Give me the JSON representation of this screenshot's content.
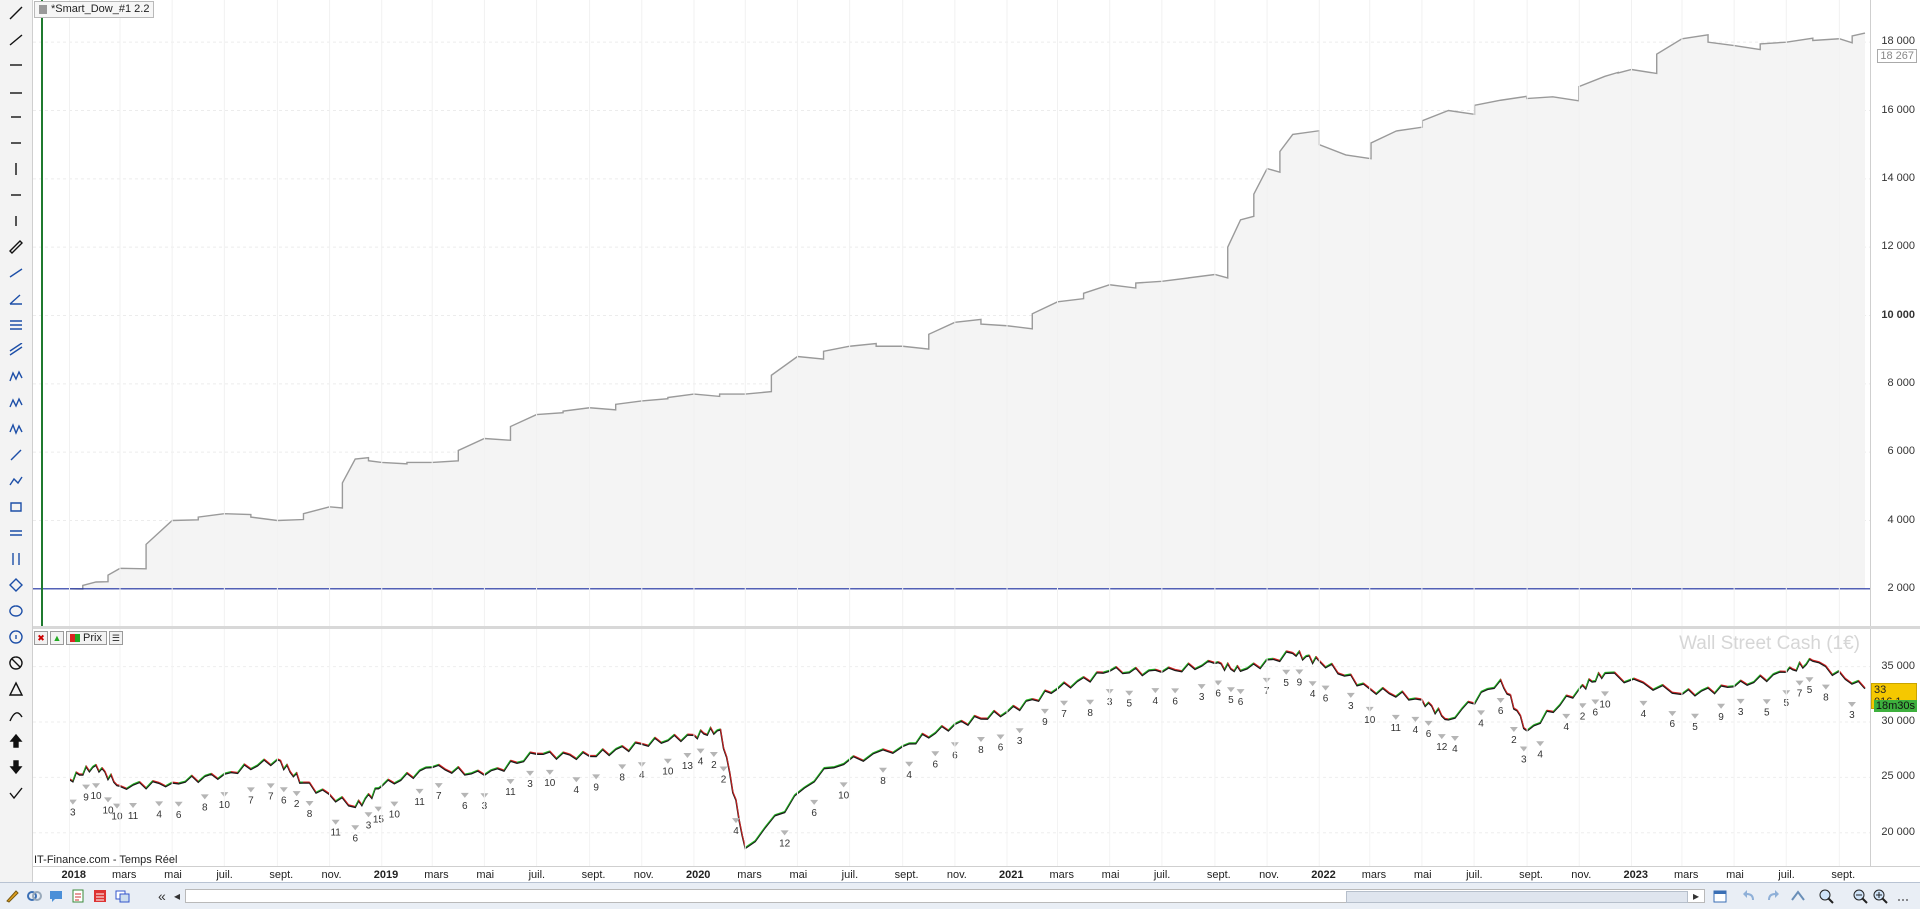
{
  "chart_title": "*Smart_Dow_#1 2.2",
  "equity_last_value": "18 267",
  "equity_axis_ticks": [
    "18 000",
    "16 000",
    "14 000",
    "12 000",
    "10 000",
    "8 000",
    "6 000",
    "4 000",
    "2 000"
  ],
  "price_tab_label": "Prix",
  "instrument_name": "Wall Street Cash (1€)",
  "price_axis_ticks": [
    "35 000",
    "30 000",
    "25 000",
    "20 000"
  ],
  "last_price": "33 016,1",
  "countdown": "18m30s",
  "data_source": "IT-Finance.com - Temps Réel",
  "time_axis": [
    {
      "label": "2018",
      "year": true
    },
    {
      "label": "mars"
    },
    {
      "label": "mai"
    },
    {
      "label": "juil."
    },
    {
      "label": "sept."
    },
    {
      "label": "nov."
    },
    {
      "label": "2019",
      "year": true
    },
    {
      "label": "mars"
    },
    {
      "label": "mai"
    },
    {
      "label": "juil."
    },
    {
      "label": "sept."
    },
    {
      "label": "nov."
    },
    {
      "label": "2020",
      "year": true
    },
    {
      "label": "mars"
    },
    {
      "label": "mai"
    },
    {
      "label": "juil."
    },
    {
      "label": "sept."
    },
    {
      "label": "nov."
    },
    {
      "label": "2021",
      "year": true
    },
    {
      "label": "mars"
    },
    {
      "label": "mai"
    },
    {
      "label": "juil."
    },
    {
      "label": "sept."
    },
    {
      "label": "nov."
    },
    {
      "label": "2022",
      "year": true
    },
    {
      "label": "mars"
    },
    {
      "label": "mai"
    },
    {
      "label": "juil."
    },
    {
      "label": "sept."
    },
    {
      "label": "nov."
    },
    {
      "label": "2023",
      "year": true
    },
    {
      "label": "mars"
    },
    {
      "label": "mai"
    },
    {
      "label": "juil."
    },
    {
      "label": "sept."
    }
  ],
  "trade_labels": [
    "3",
    "9",
    "10",
    "10",
    "10",
    "11",
    "4",
    "6",
    "8",
    "10",
    "7",
    "7",
    "6",
    "2",
    "8",
    "11",
    "6",
    "3",
    "15",
    "10",
    "11",
    "7",
    "6",
    "3",
    "11",
    "3",
    "10",
    "4",
    "9",
    "8",
    "4",
    "10",
    "13",
    "4",
    "2",
    "2",
    "4",
    "10",
    "12",
    "6",
    "10",
    "8",
    "4",
    "6",
    "6",
    "8",
    "6",
    "3",
    "9",
    "7",
    "8",
    "3",
    "5",
    "4",
    "6",
    "3",
    "6",
    "5",
    "6",
    "7",
    "5",
    "9",
    "4",
    "6",
    "3",
    "10",
    "11",
    "4",
    "6",
    "12",
    "4",
    "4",
    "6",
    "2",
    "3",
    "4",
    "4",
    "2",
    "6",
    "10",
    "4",
    "6",
    "5",
    "9",
    "3",
    "5",
    "5",
    "7",
    "5",
    "8",
    "3"
  ],
  "chart_data": [
    {
      "type": "line",
      "title": "*Smart_Dow_#1 2.2",
      "series": [
        {
          "name": "",
          "x": [
            "2018-01",
            "2018-02",
            "2018-03",
            "2018-05",
            "2018-07",
            "2018-09",
            "2018-11",
            "2018-12",
            "2019-01",
            "2019-03",
            "2019-05",
            "2019-07",
            "2019-09",
            "2019-11",
            "2020-01",
            "2020-03",
            "2020-05",
            "2020-07",
            "2020-09",
            "2020-11",
            "2021-01",
            "2021-03",
            "2021-05",
            "2021-07",
            "2021-09",
            "2021-10",
            "2021-11",
            "2021-12",
            "2022-02",
            "2022-04",
            "2022-06",
            "2022-08",
            "2022-10",
            "2022-12",
            "2023-01",
            "2023-03",
            "2023-05",
            "2023-07",
            "2023-09",
            "2023-10"
          ],
          "values": [
            2000,
            2200,
            2600,
            4000,
            4200,
            4000,
            4400,
            5800,
            5700,
            5700,
            6400,
            7100,
            7300,
            7500,
            7700,
            7700,
            8800,
            9100,
            9100,
            9800,
            9700,
            10400,
            10900,
            11000,
            11200,
            12800,
            14300,
            15300,
            14700,
            15400,
            16000,
            16300,
            16400,
            17000,
            17200,
            18100,
            17900,
            18000,
            18100,
            18267
          ]
        }
      ],
      "ylim": [
        1000,
        19000
      ],
      "reference_line": 2000,
      "grid": true
    },
    {
      "type": "line",
      "title": "Wall Street Cash (1€)",
      "series": [
        {
          "name": "Prix",
          "x": [
            "2018-01",
            "2018-02",
            "2018-03",
            "2018-05",
            "2018-07",
            "2018-09",
            "2018-10",
            "2018-12",
            "2019-01",
            "2019-03",
            "2019-05",
            "2019-07",
            "2019-09",
            "2019-11",
            "2020-01",
            "2020-02",
            "2020-03",
            "2020-06",
            "2020-09",
            "2020-11",
            "2021-01",
            "2021-03",
            "2021-05",
            "2021-07",
            "2021-09",
            "2021-10",
            "2021-12",
            "2022-01",
            "2022-03",
            "2022-05",
            "2022-06",
            "2022-08",
            "2022-09",
            "2022-11",
            "2022-12",
            "2023-03",
            "2023-05",
            "2023-07",
            "2023-08",
            "2023-10"
          ],
          "values": [
            24800,
            26100,
            24200,
            24500,
            25300,
            26600,
            24500,
            22300,
            24200,
            25900,
            25200,
            27100,
            26900,
            28000,
            28800,
            29300,
            18600,
            25800,
            27800,
            29800,
            30900,
            33000,
            34600,
            34500,
            35300,
            34600,
            36200,
            35500,
            33000,
            32000,
            30200,
            33800,
            29200,
            33000,
            34400,
            32500,
            33200,
            34500,
            35500,
            33016
          ]
        }
      ],
      "ylim": [
        17000,
        37500
      ],
      "grid": true
    }
  ]
}
